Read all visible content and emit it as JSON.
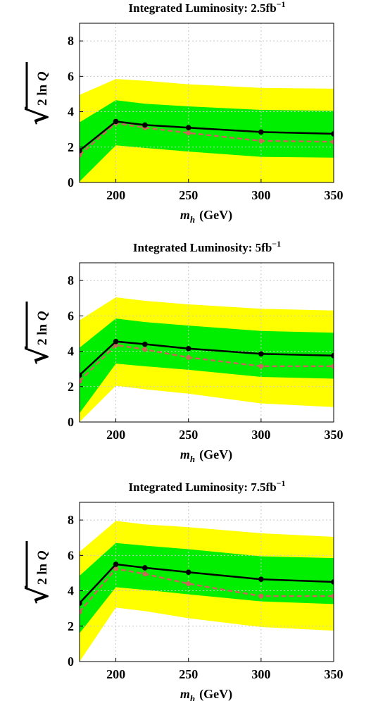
{
  "colors": {
    "band_2sigma": "#ffff00",
    "band_1sigma": "#00ee00",
    "observed_line": "#000000",
    "expected_line": "#c8685a",
    "grid": "#c8c8c8",
    "frame": "#000000"
  },
  "chart_data": [
    {
      "type": "line",
      "title": "Integrated Luminosity: 2.5fb",
      "title_superscript": "−1",
      "xlabel_main": "m",
      "xlabel_sub": "h",
      "xlabel_unit": "(GeV)",
      "ylabel": "2 ln Q",
      "ylabel_radical": "√",
      "xlim": [
        175,
        350
      ],
      "ylim": [
        0,
        9
      ],
      "grid": true,
      "xticks": [
        200,
        250,
        300,
        350
      ],
      "yticks": [
        0,
        2,
        4,
        6,
        8
      ],
      "x": [
        175,
        200,
        220,
        250,
        300,
        350
      ],
      "observed": [
        1.8,
        3.45,
        3.25,
        3.1,
        2.85,
        2.75
      ],
      "expected": [
        1.55,
        3.35,
        3.1,
        2.8,
        2.35,
        2.3
      ],
      "band_1sigma_low": [
        0.05,
        2.1,
        1.95,
        1.75,
        1.45,
        1.4
      ],
      "band_1sigma_high": [
        3.4,
        4.65,
        4.45,
        4.3,
        4.1,
        4.05
      ],
      "band_2sigma_low": [
        0,
        0,
        0,
        0,
        0,
        0
      ],
      "band_2sigma_high": [
        4.95,
        5.85,
        5.75,
        5.55,
        5.35,
        5.3
      ]
    },
    {
      "type": "line",
      "title": "Integrated Luminosity: 5fb",
      "title_superscript": "−1",
      "xlabel_main": "m",
      "xlabel_sub": "h",
      "xlabel_unit": "(GeV)",
      "ylabel": "2 ln Q",
      "ylabel_radical": "√",
      "xlim": [
        175,
        350
      ],
      "ylim": [
        0,
        9
      ],
      "grid": true,
      "xticks": [
        200,
        250,
        300,
        350
      ],
      "yticks": [
        0,
        2,
        4,
        6,
        8
      ],
      "x": [
        175,
        200,
        220,
        250,
        300,
        350
      ],
      "observed": [
        2.65,
        4.55,
        4.4,
        4.15,
        3.85,
        3.75
      ],
      "expected": [
        2.3,
        4.35,
        4.1,
        3.65,
        3.15,
        3.15
      ],
      "band_1sigma_low": [
        0.5,
        3.3,
        3.15,
        2.95,
        2.55,
        2.45
      ],
      "band_1sigma_high": [
        4.2,
        5.85,
        5.65,
        5.45,
        5.15,
        5.05
      ],
      "band_2sigma_low": [
        0,
        2.05,
        1.85,
        1.6,
        1.05,
        0.85
      ],
      "band_2sigma_high": [
        5.75,
        7.05,
        6.85,
        6.65,
        6.4,
        6.3
      ]
    },
    {
      "type": "line",
      "title": "Integrated Luminosity: 7.5fb",
      "title_superscript": "−1",
      "xlabel_main": "m",
      "xlabel_sub": "h",
      "xlabel_unit": "(GeV)",
      "ylabel": "2 ln Q",
      "ylabel_radical": "√",
      "xlim": [
        175,
        350
      ],
      "ylim": [
        0,
        9
      ],
      "grid": true,
      "xticks": [
        200,
        250,
        300,
        350
      ],
      "yticks": [
        0,
        2,
        4,
        6,
        8
      ],
      "x": [
        175,
        200,
        220,
        250,
        300,
        350
      ],
      "observed": [
        3.3,
        5.5,
        5.3,
        5.05,
        4.65,
        4.5
      ],
      "expected": [
        2.8,
        5.25,
        4.95,
        4.4,
        3.7,
        3.7
      ],
      "band_1sigma_low": [
        1.6,
        4.2,
        4.05,
        3.8,
        3.4,
        3.25
      ],
      "band_1sigma_high": [
        4.85,
        6.7,
        6.55,
        6.35,
        5.95,
        5.85
      ],
      "band_2sigma_low": [
        0,
        3.05,
        2.85,
        2.45,
        1.95,
        1.75
      ],
      "band_2sigma_high": [
        6.2,
        7.95,
        7.75,
        7.6,
        7.25,
        7.05
      ]
    }
  ]
}
